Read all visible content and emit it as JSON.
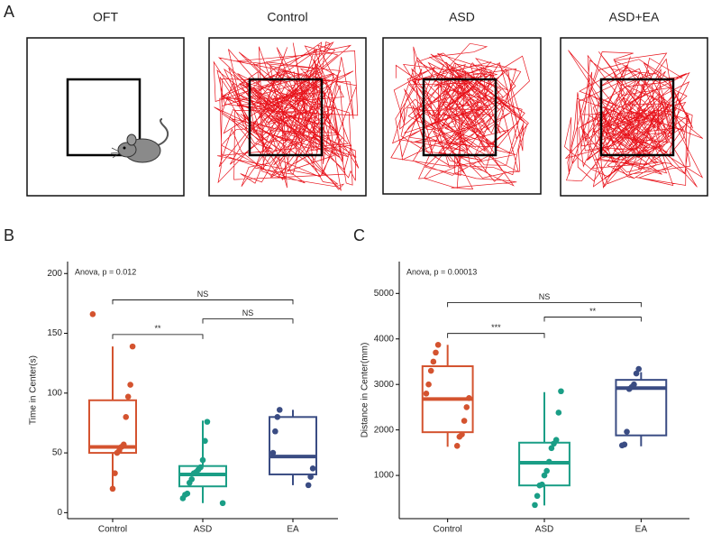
{
  "panel_a": {
    "label": "A",
    "titles": [
      "OFT",
      "Control",
      "ASD",
      "ASD+EA"
    ]
  },
  "chart_data": [
    {
      "type": "box",
      "panel": "B",
      "ylabel": "Time in Center(s)",
      "annotation": "Anova, p = 0.012",
      "categories": [
        "Control",
        "ASD",
        "EA"
      ],
      "colors": [
        "#d4532f",
        "#1a9e86",
        "#3a4c83"
      ],
      "ylim": [
        -5,
        210
      ],
      "yticks": [
        0,
        50,
        100,
        150,
        200
      ],
      "boxes": [
        {
          "q1": 50,
          "median": 55,
          "q3": 94,
          "whisker_low": 20,
          "whisker_high": 139,
          "points": [
            166,
            139,
            107,
            97,
            80,
            57,
            55,
            52,
            50,
            33,
            20
          ]
        },
        {
          "q1": 22,
          "median": 32,
          "q3": 39,
          "whisker_low": 8,
          "whisker_high": 77,
          "points": [
            76,
            60,
            44,
            38,
            36,
            34,
            33,
            28,
            25,
            16,
            15,
            12,
            8
          ]
        },
        {
          "q1": 32,
          "median": 47,
          "q3": 80,
          "whisker_low": 23,
          "whisker_high": 86,
          "points": [
            86,
            80,
            68,
            50,
            37,
            30,
            23
          ]
        }
      ],
      "comparisons": [
        {
          "text": "NS",
          "groups": [
            "Control",
            "EA"
          ],
          "y": 178
        },
        {
          "text": "NS",
          "groups": [
            "ASD",
            "EA"
          ],
          "y": 162
        },
        {
          "text": "**",
          "groups": [
            "Control",
            "ASD"
          ],
          "y": 149
        }
      ]
    },
    {
      "type": "box",
      "panel": "C",
      "ylabel": "Distance in Center(mm)",
      "annotation": "Anova, p = 0.00013",
      "categories": [
        "Control",
        "ASD",
        "EA"
      ],
      "colors": [
        "#d4532f",
        "#1a9e86",
        "#3a4c83"
      ],
      "ylim": [
        50,
        5700
      ],
      "yticks": [
        1000,
        2000,
        3000,
        4000,
        5000
      ],
      "boxes": [
        {
          "q1": 1950,
          "median": 2680,
          "q3": 3400,
          "whisker_low": 1630,
          "whisker_high": 3870,
          "points": [
            3870,
            3700,
            3500,
            3300,
            3000,
            2800,
            2700,
            2500,
            2200,
            1900,
            1850,
            1650
          ]
        },
        {
          "q1": 780,
          "median": 1280,
          "q3": 1720,
          "whisker_low": 340,
          "whisker_high": 2830,
          "points": [
            2850,
            2380,
            1780,
            1700,
            1600,
            1300,
            1100,
            1000,
            800,
            780,
            550,
            350
          ]
        },
        {
          "q1": 1880,
          "median": 2920,
          "q3": 3100,
          "whisker_low": 1640,
          "whisker_high": 3270,
          "points": [
            3340,
            3240,
            3000,
            2940,
            2900,
            1960,
            1680,
            1660
          ]
        }
      ],
      "comparisons": [
        {
          "text": "NS",
          "groups": [
            "Control",
            "EA"
          ],
          "y": 4800
        },
        {
          "text": "**",
          "groups": [
            "ASD",
            "EA"
          ],
          "y": 4480
        },
        {
          "text": "***",
          "groups": [
            "Control",
            "ASD"
          ],
          "y": 4120
        }
      ]
    }
  ]
}
